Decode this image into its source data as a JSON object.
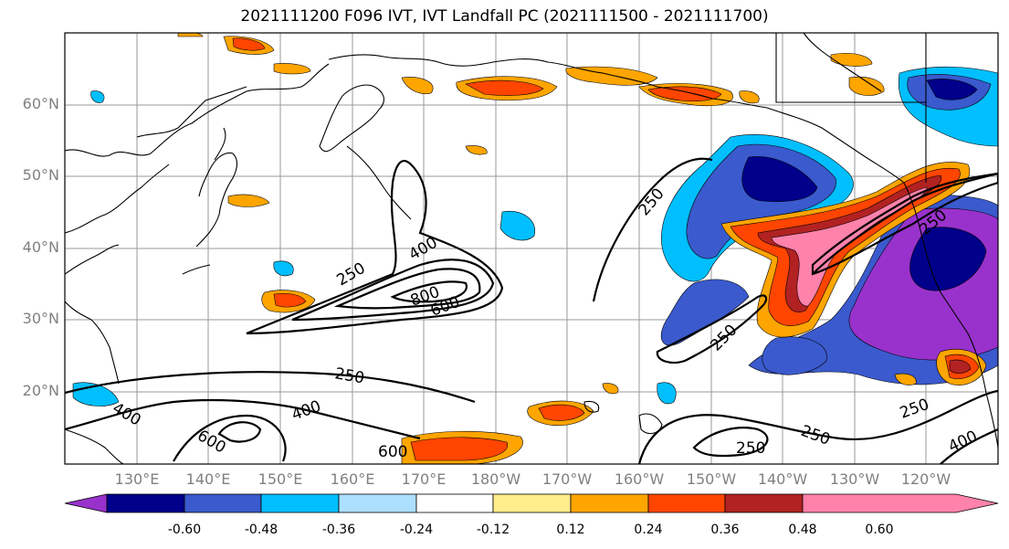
{
  "title": "2021111200 F096 IVT, IVT Landfall PC (2021111500 - 2021111700)",
  "map": {
    "lon_range": [
      120,
      250
    ],
    "lat_range": [
      10,
      70
    ],
    "lat_labels": [
      "20°N",
      "30°N",
      "40°N",
      "50°N",
      "60°N"
    ],
    "lon_labels": [
      "130°E",
      "140°E",
      "150°E",
      "160°E",
      "170°E",
      "180°W",
      "170°W",
      "160°W",
      "150°W",
      "140°W",
      "130°W",
      "120°W"
    ],
    "gridlines": true
  },
  "contour_labels": [
    "250",
    "400",
    "600",
    "800",
    "250",
    "400",
    "600",
    "250",
    "400",
    "600",
    "250",
    "250",
    "250",
    "250",
    "250",
    "400"
  ],
  "colorbar": {
    "ticks": [
      "-0.60",
      "-0.48",
      "-0.36",
      "-0.24",
      "-0.12",
      "0.12",
      "0.24",
      "0.36",
      "0.48",
      "0.60"
    ],
    "colors": [
      "#9932CC",
      "#00008B",
      "#3A5ACD",
      "#00BFFF",
      "#ADDFFF",
      "#FFFFFF",
      "#FFEC8B",
      "#FFA500",
      "#FF4500",
      "#B22222",
      "#FF82AB"
    ]
  }
}
